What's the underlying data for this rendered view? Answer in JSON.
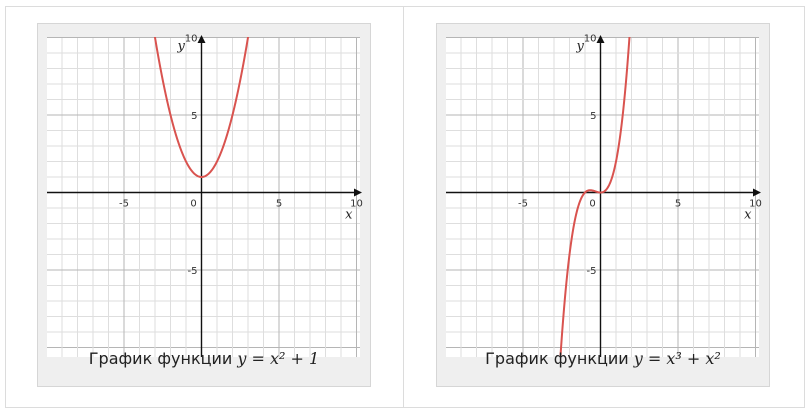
{
  "chart_data": [
    {
      "type": "line",
      "function": "x^2 + 1",
      "caption_text": "График функции",
      "caption_math": "y = x² + 1",
      "xlabel": "x",
      "ylabel": "y",
      "xlim": [
        -10,
        10
      ],
      "ylim": [
        -10,
        10
      ],
      "x_ticks": [
        "-5",
        "0",
        "5",
        "10"
      ],
      "y_ticks": [
        "10",
        "5",
        "-5"
      ],
      "grid": true,
      "color": "#d9534f",
      "x": [
        -3,
        -2,
        -1,
        0,
        1,
        2,
        3
      ],
      "y": [
        10,
        5,
        2,
        1,
        2,
        5,
        10
      ]
    },
    {
      "type": "line",
      "function": "x^3 + x^2",
      "caption_text": "График функции",
      "caption_math": "y = x³ + x²",
      "xlabel": "x",
      "ylabel": "y",
      "xlim": [
        -10,
        10
      ],
      "ylim": [
        -10,
        10
      ],
      "x_ticks": [
        "-5",
        "0",
        "5",
        "10"
      ],
      "y_ticks": [
        "10",
        "5",
        "-5"
      ],
      "grid": true,
      "color": "#d9534f",
      "x": [
        -2.5,
        -2,
        -1.5,
        -1,
        -0.667,
        0,
        0.5,
        1,
        1.5,
        1.8
      ],
      "y": [
        -9.375,
        -4,
        -1.125,
        0,
        0.148,
        0,
        0.375,
        2,
        5.625,
        9.072
      ]
    }
  ]
}
